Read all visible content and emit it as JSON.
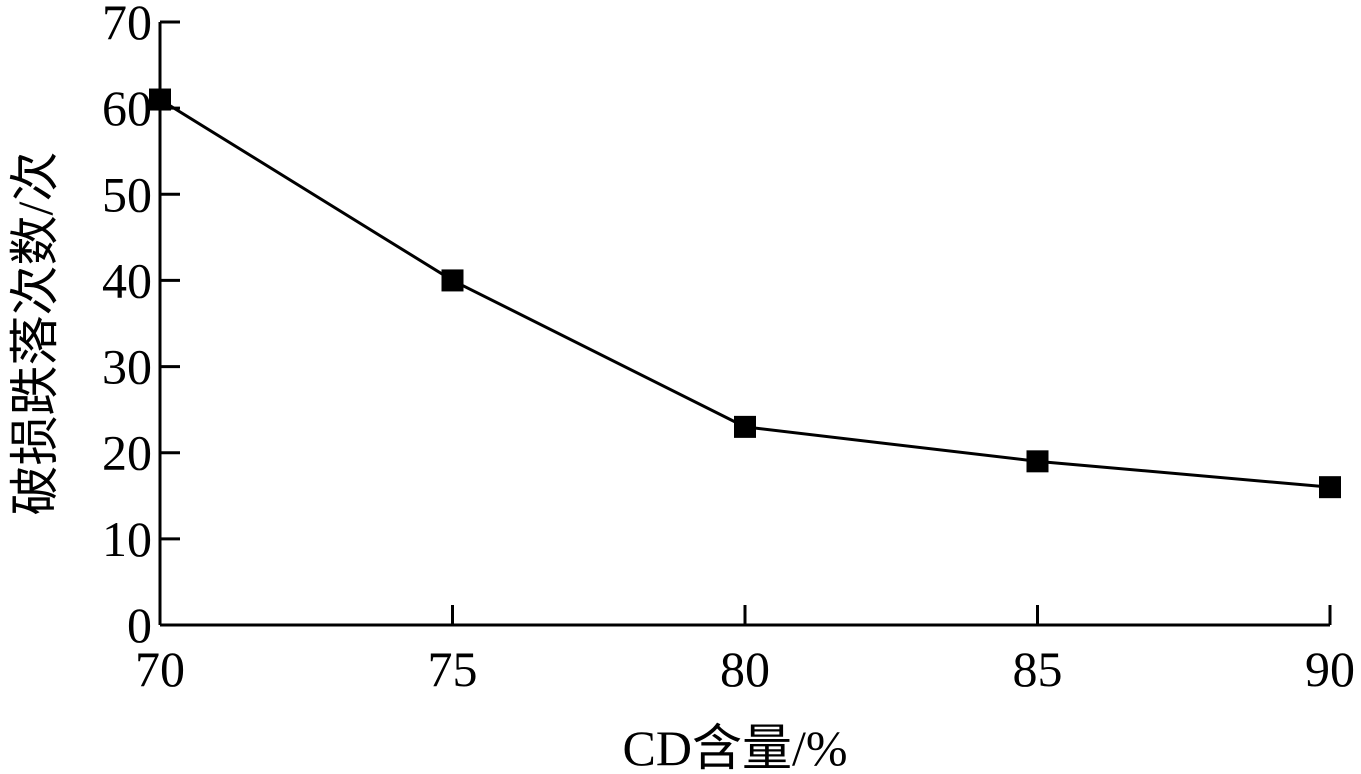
{
  "chart_data": {
    "type": "line",
    "title": "",
    "xlabel": "CD含量/%",
    "ylabel": "破损跌落次数/次",
    "x": [
      70,
      75,
      80,
      85,
      90
    ],
    "series": [
      {
        "values": [
          61,
          40,
          23,
          19,
          16
        ]
      }
    ],
    "xlim": [
      70,
      90
    ],
    "ylim": [
      0,
      70
    ],
    "xticks": [
      70,
      75,
      80,
      85,
      90
    ],
    "yticks": [
      0,
      10,
      20,
      30,
      40,
      50,
      60,
      70
    ],
    "marker": "square",
    "grid": false,
    "legend": "none",
    "colors": {
      "line": "#000000",
      "marker": "#000000",
      "axis": "#000000"
    }
  }
}
